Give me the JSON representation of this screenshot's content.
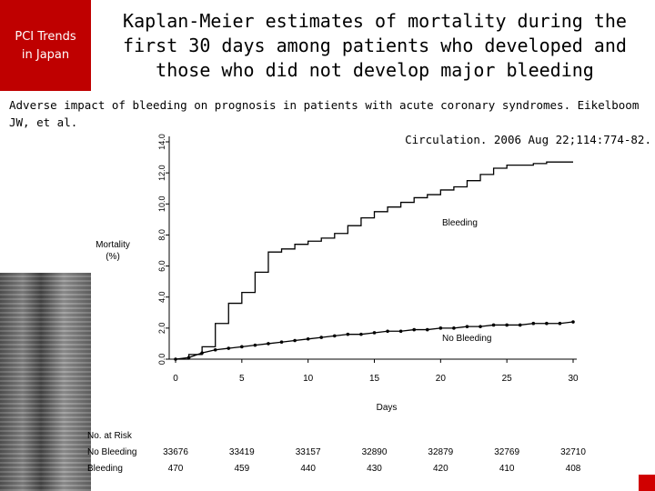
{
  "logo": {
    "line1": "PCI Trends",
    "line2": "in Japan"
  },
  "slide_title": "Kaplan-Meier estimates of mortality during the first 30 days among patients who developed and those who did not develop major bleeding",
  "citation": {
    "line1": "Adverse impact of bleeding on prognosis in patients with acute coronary syndromes. Eikelboom JW, et al.",
    "line2": "Circulation. 2006 Aug 22;114:774-82."
  },
  "colors": {
    "logo_bg": "#bf0000",
    "series_line": "#000000",
    "accent": "#d00000"
  },
  "chart_data": {
    "type": "line",
    "xlabel": "Days",
    "ylabel_line1": "Mortality",
    "ylabel_line2": "(%)",
    "xlim": [
      0,
      30
    ],
    "ylim": [
      0,
      14
    ],
    "x_ticks": [
      "0",
      "5",
      "10",
      "15",
      "20",
      "25",
      "30"
    ],
    "y_ticks": [
      "0.0",
      "2.0",
      "4.0",
      "6.0",
      "8.0",
      "10.0",
      "12.0",
      "14.0"
    ],
    "grid": false,
    "series": [
      {
        "name": "Bleeding",
        "step": true,
        "x": [
          0,
          1,
          2,
          3,
          4,
          5,
          6,
          7,
          8,
          9,
          10,
          11,
          12,
          13,
          14,
          15,
          16,
          17,
          18,
          19,
          20,
          21,
          22,
          23,
          24,
          25,
          26,
          27,
          28,
          29,
          30
        ],
        "y": [
          0,
          0.3,
          0.8,
          2.3,
          3.6,
          4.3,
          5.6,
          6.9,
          7.1,
          7.4,
          7.6,
          7.8,
          8.1,
          8.6,
          9.1,
          9.5,
          9.8,
          10.1,
          10.4,
          10.6,
          10.9,
          11.1,
          11.5,
          11.9,
          12.3,
          12.5,
          12.5,
          12.6,
          12.7,
          12.7,
          12.7
        ]
      },
      {
        "name": "No Bleeding",
        "step": false,
        "markers": true,
        "x": [
          0,
          1,
          2,
          3,
          4,
          5,
          6,
          7,
          8,
          9,
          10,
          11,
          12,
          13,
          14,
          15,
          16,
          17,
          18,
          19,
          20,
          21,
          22,
          23,
          24,
          25,
          26,
          27,
          28,
          29,
          30
        ],
        "y": [
          0,
          0.1,
          0.4,
          0.6,
          0.7,
          0.8,
          0.9,
          1.0,
          1.1,
          1.2,
          1.3,
          1.4,
          1.5,
          1.6,
          1.6,
          1.7,
          1.8,
          1.8,
          1.9,
          1.9,
          2.0,
          2.0,
          2.1,
          2.1,
          2.2,
          2.2,
          2.2,
          2.3,
          2.3,
          2.3,
          2.4
        ]
      }
    ],
    "risk_table": {
      "header": "No. at Risk",
      "rows": [
        {
          "label": "No Bleeding",
          "values": [
            "33676",
            "33419",
            "33157",
            "32890",
            "32879",
            "32769",
            "32710"
          ]
        },
        {
          "label": "Bleeding",
          "values": [
            "470",
            "459",
            "440",
            "430",
            "420",
            "410",
            "408"
          ]
        }
      ]
    }
  }
}
